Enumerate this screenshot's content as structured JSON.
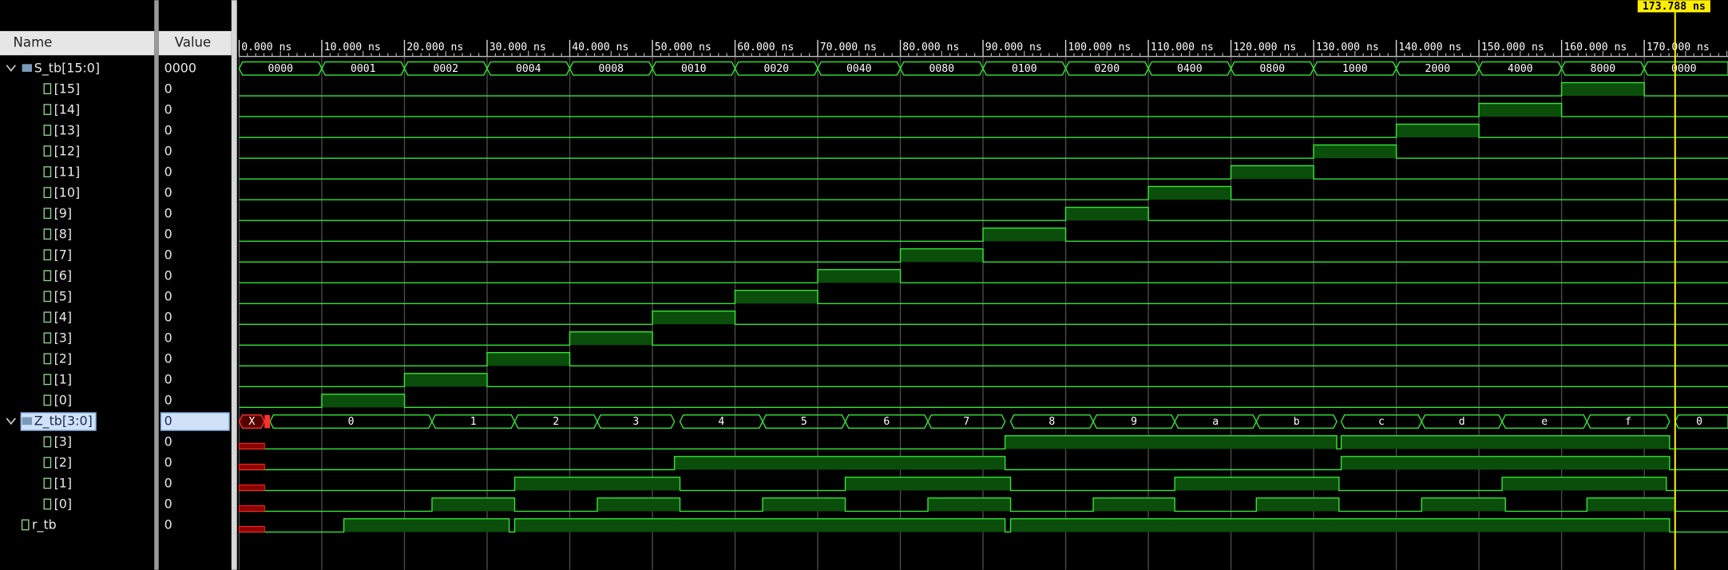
{
  "columns": {
    "name": "Name",
    "value": "Value"
  },
  "cursor": "173.788 ns",
  "ruler": [
    "0.000 ns",
    "10.000 ns",
    "20.000 ns",
    "30.000 ns",
    "40.000 ns",
    "50.000 ns",
    "60.000 ns",
    "70.000 ns",
    "80.000 ns",
    "90.000 ns",
    "100.000 ns",
    "110.000 ns",
    "120.000 ns",
    "130.000 ns",
    "140.000 ns",
    "150.000 ns",
    "160.000 ns",
    "170.000 ns"
  ],
  "signals": [
    {
      "name": "S_tb[15:0]",
      "value": "0000",
      "segments": [
        "0000",
        "0001",
        "0002",
        "0004",
        "0008",
        "0010",
        "0020",
        "0040",
        "0080",
        "0100",
        "0200",
        "0400",
        "0800",
        "1000",
        "2000",
        "4000",
        "8000",
        "0000"
      ]
    },
    {
      "name": "[15]",
      "value": "0"
    },
    {
      "name": "[14]",
      "value": "0"
    },
    {
      "name": "[13]",
      "value": "0"
    },
    {
      "name": "[12]",
      "value": "0"
    },
    {
      "name": "[11]",
      "value": "0"
    },
    {
      "name": "[10]",
      "value": "0"
    },
    {
      "name": "[9]",
      "value": "0"
    },
    {
      "name": "[8]",
      "value": "0"
    },
    {
      "name": "[7]",
      "value": "0"
    },
    {
      "name": "[6]",
      "value": "0"
    },
    {
      "name": "[5]",
      "value": "0"
    },
    {
      "name": "[4]",
      "value": "0"
    },
    {
      "name": "[3]",
      "value": "0"
    },
    {
      "name": "[2]",
      "value": "0"
    },
    {
      "name": "[1]",
      "value": "0"
    },
    {
      "name": "[0]",
      "value": "0"
    },
    {
      "name": "Z_tb[3:0]",
      "value": "0",
      "segments": [
        "X",
        "0",
        "1",
        "2",
        "3",
        "4",
        "5",
        "6",
        "7",
        "8",
        "9",
        "a",
        "b",
        "c",
        "d",
        "e",
        "f",
        "0"
      ]
    },
    {
      "name": "[3]",
      "value": "0"
    },
    {
      "name": "[2]",
      "value": "0"
    },
    {
      "name": "[1]",
      "value": "0"
    },
    {
      "name": "[0]",
      "value": "0"
    },
    {
      "name": "r_tb",
      "value": "0"
    }
  ]
}
